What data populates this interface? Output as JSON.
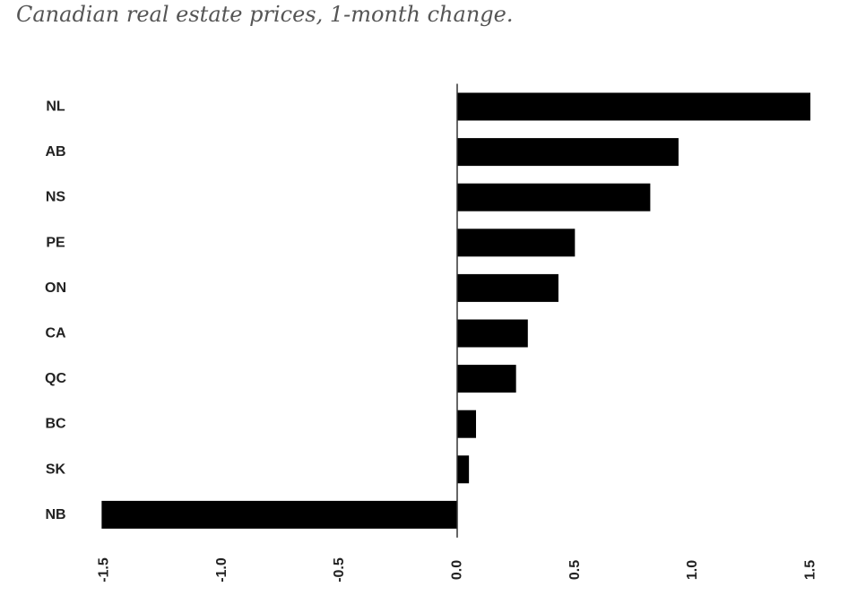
{
  "chart_data": {
    "type": "bar",
    "orientation": "horizontal",
    "title": "Canadian real estate prices, 1-month change.",
    "categories": [
      "NL",
      "AB",
      "NS",
      "PE",
      "ON",
      "CA",
      "QC",
      "BC",
      "SK",
      "NB"
    ],
    "values": [
      1.5,
      0.94,
      0.82,
      0.5,
      0.43,
      0.3,
      0.25,
      0.08,
      0.05,
      -1.51
    ],
    "xlim": [
      -1.5,
      1.5
    ],
    "xticks": [
      "-1.5",
      "-1.0",
      "-0.5",
      "0.0",
      "0.5",
      "1.0",
      "1.5"
    ],
    "grid": false,
    "bar_color": "#000000",
    "axis_color": "#333333"
  }
}
